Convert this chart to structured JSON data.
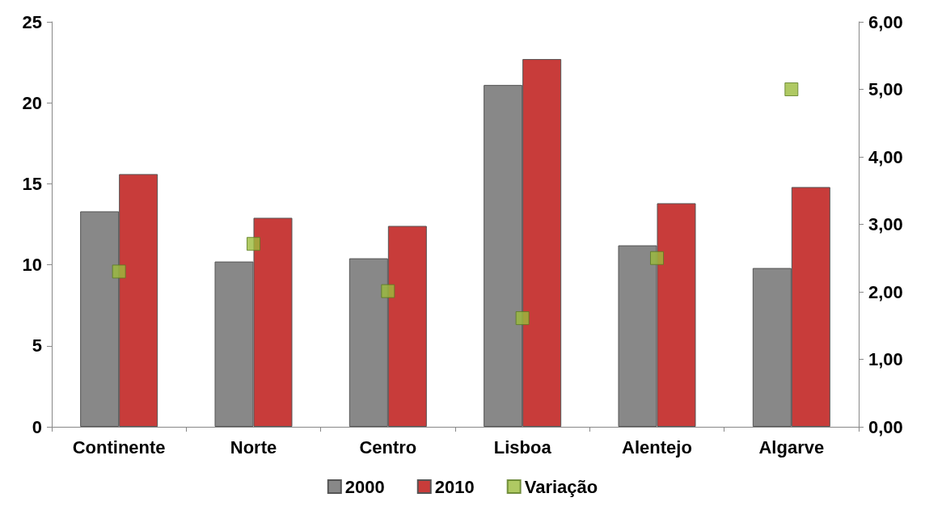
{
  "chart_data": {
    "type": "bar",
    "categories": [
      "Continente",
      "Norte",
      "Centro",
      "Lisboa",
      "Alentejo",
      "Algarve"
    ],
    "series": [
      {
        "name": "2000",
        "color": "#888888",
        "values": [
          13.3,
          10.2,
          10.4,
          21.1,
          11.2,
          9.8
        ]
      },
      {
        "name": "2010",
        "color": "#c83c3a",
        "values": [
          15.6,
          12.9,
          12.4,
          22.7,
          13.8,
          14.8
        ]
      },
      {
        "name": "Variação",
        "type": "scatter",
        "axis": "y2",
        "color": "#9bbb3c",
        "values": [
          2.3,
          2.71,
          2.01,
          1.61,
          2.5,
          5.0
        ]
      }
    ],
    "ylim": [
      0,
      25
    ],
    "yticks": [
      0,
      5,
      10,
      15,
      20,
      25
    ],
    "y2lim": [
      0,
      6
    ],
    "y2ticks": [
      {
        "value": 0,
        "label": "0,00"
      },
      {
        "value": 1,
        "label": "1,00"
      },
      {
        "value": 2,
        "label": "2,00"
      },
      {
        "value": 3,
        "label": "3,00"
      },
      {
        "value": 4,
        "label": "4,00"
      },
      {
        "value": 5,
        "label": "5,00"
      },
      {
        "value": 6,
        "label": "6,00"
      }
    ],
    "grid": false,
    "legend": "bottom",
    "marker": "square"
  }
}
